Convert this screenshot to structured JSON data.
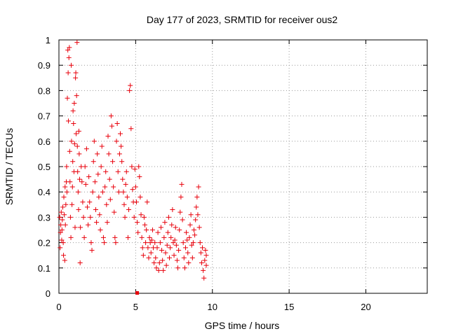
{
  "chart_data": {
    "type": "scatter",
    "title": "Day 177 of 2023, SRMTID for receiver ous2",
    "xlabel": "GPS time / hours",
    "ylabel": "SRMTID / TECUs",
    "xlim": [
      0,
      24
    ],
    "ylim": [
      0,
      1
    ],
    "xticks": [
      0,
      5,
      10,
      15,
      20
    ],
    "xtick_labels": [
      "0",
      "5",
      "10",
      "15",
      "20"
    ],
    "yticks": [
      0,
      0.1,
      0.2,
      0.3,
      0.4,
      0.5,
      0.6,
      0.7,
      0.8,
      0.9,
      1
    ],
    "ytick_labels": [
      "0",
      "0.1",
      "0.2",
      "0.3",
      "0.4",
      "0.5",
      "0.6",
      "0.7",
      "0.8",
      "0.9",
      "1"
    ],
    "grid": true,
    "marker": "+",
    "color": "#e8000b",
    "series": [
      {
        "name": "SRMTID",
        "x_range": [
          0,
          9.6
        ],
        "points": [
          [
            0.05,
            0.3
          ],
          [
            0.08,
            0.18
          ],
          [
            0.1,
            0.24
          ],
          [
            0.12,
            0.27
          ],
          [
            0.15,
            0.32
          ],
          [
            0.18,
            0.21
          ],
          [
            0.2,
            0.25
          ],
          [
            0.22,
            0.29
          ],
          [
            0.25,
            0.34
          ],
          [
            0.28,
            0.2
          ],
          [
            0.3,
            0.15
          ],
          [
            0.32,
            0.38
          ],
          [
            0.35,
            0.31
          ],
          [
            0.38,
            0.13
          ],
          [
            0.4,
            0.42
          ],
          [
            0.42,
            0.27
          ],
          [
            0.45,
            0.35
          ],
          [
            0.48,
            0.44
          ],
          [
            0.5,
            0.5
          ],
          [
            0.52,
            0.4
          ],
          [
            0.55,
            0.77
          ],
          [
            0.58,
            0.96
          ],
          [
            0.6,
            0.87
          ],
          [
            0.62,
            0.68
          ],
          [
            0.65,
            0.93
          ],
          [
            0.68,
            0.97
          ],
          [
            0.7,
            0.56
          ],
          [
            0.72,
            0.44
          ],
          [
            0.75,
            0.3
          ],
          [
            0.78,
            0.22
          ],
          [
            0.8,
            0.9
          ],
          [
            0.82,
            0.6
          ],
          [
            0.85,
            0.35
          ],
          [
            0.88,
            0.42
          ],
          [
            0.9,
            0.52
          ],
          [
            0.92,
            0.72
          ],
          [
            0.95,
            0.67
          ],
          [
            0.98,
            0.48
          ],
          [
            1.0,
            0.75
          ],
          [
            1.02,
            0.59
          ],
          [
            1.05,
            0.26
          ],
          [
            1.08,
            0.85
          ],
          [
            1.1,
            0.87
          ],
          [
            1.12,
            0.63
          ],
          [
            1.15,
            0.78
          ],
          [
            1.18,
            0.99
          ],
          [
            1.2,
            0.58
          ],
          [
            1.22,
            0.48
          ],
          [
            1.25,
            0.4
          ],
          [
            1.28,
            0.33
          ],
          [
            1.3,
            0.64
          ],
          [
            1.32,
            0.55
          ],
          [
            1.35,
            0.45
          ],
          [
            1.38,
            0.12
          ],
          [
            1.4,
            0.26
          ],
          [
            1.45,
            0.5
          ],
          [
            1.5,
            0.44
          ],
          [
            1.55,
            0.36
          ],
          [
            1.6,
            0.3
          ],
          [
            1.65,
            0.22
          ],
          [
            1.7,
            0.5
          ],
          [
            1.75,
            0.43
          ],
          [
            1.8,
            0.57
          ],
          [
            1.85,
            0.34
          ],
          [
            1.9,
            0.27
          ],
          [
            1.95,
            0.46
          ],
          [
            2.0,
            0.36
          ],
          [
            2.05,
            0.3
          ],
          [
            2.1,
            0.2
          ],
          [
            2.15,
            0.17
          ],
          [
            2.2,
            0.4
          ],
          [
            2.25,
            0.52
          ],
          [
            2.3,
            0.6
          ],
          [
            2.35,
            0.44
          ],
          [
            2.4,
            0.33
          ],
          [
            2.45,
            0.28
          ],
          [
            2.5,
            0.55
          ],
          [
            2.55,
            0.47
          ],
          [
            2.6,
            0.38
          ],
          [
            2.65,
            0.31
          ],
          [
            2.7,
            0.25
          ],
          [
            2.75,
            0.5
          ],
          [
            2.8,
            0.58
          ],
          [
            2.85,
            0.4
          ],
          [
            2.9,
            0.22
          ],
          [
            2.95,
            0.2
          ],
          [
            3.0,
            0.42
          ],
          [
            3.05,
            0.48
          ],
          [
            3.1,
            0.35
          ],
          [
            3.15,
            0.28
          ],
          [
            3.2,
            0.62
          ],
          [
            3.25,
            0.55
          ],
          [
            3.3,
            0.45
          ],
          [
            3.35,
            0.37
          ],
          [
            3.4,
            0.7
          ],
          [
            3.45,
            0.66
          ],
          [
            3.5,
            0.52
          ],
          [
            3.55,
            0.42
          ],
          [
            3.6,
            0.32
          ],
          [
            3.65,
            0.22
          ],
          [
            3.7,
            0.2
          ],
          [
            3.75,
            0.6
          ],
          [
            3.8,
            0.67
          ],
          [
            3.85,
            0.48
          ],
          [
            3.9,
            0.4
          ],
          [
            3.95,
            0.55
          ],
          [
            4.0,
            0.63
          ],
          [
            4.05,
            0.58
          ],
          [
            4.1,
            0.52
          ],
          [
            4.15,
            0.45
          ],
          [
            4.2,
            0.4
          ],
          [
            4.25,
            0.35
          ],
          [
            4.3,
            0.3
          ],
          [
            4.35,
            0.43
          ],
          [
            4.4,
            0.48
          ],
          [
            4.45,
            0.38
          ],
          [
            4.5,
            0.22
          ],
          [
            4.55,
            0.33
          ],
          [
            4.6,
            0.8
          ],
          [
            4.65,
            0.82
          ],
          [
            4.7,
            0.65
          ],
          [
            4.75,
            0.5
          ],
          [
            4.8,
            0.41
          ],
          [
            4.85,
            0.36
          ],
          [
            4.9,
            0.3
          ],
          [
            4.95,
            0.49
          ],
          [
            5.0,
            0.42
          ],
          [
            5.05,
            0.36
          ],
          [
            5.1,
            0.28
          ],
          [
            5.15,
            0.24
          ],
          [
            5.2,
            0.5
          ],
          [
            5.25,
            0.46
          ],
          [
            5.3,
            0.38
          ],
          [
            5.35,
            0.31
          ],
          [
            5.4,
            0.22
          ],
          [
            5.45,
            0.18
          ],
          [
            5.5,
            0.15
          ],
          [
            5.55,
            0.3
          ],
          [
            5.6,
            0.27
          ],
          [
            5.65,
            0.2
          ],
          [
            5.7,
            0.25
          ],
          [
            5.75,
            0.36
          ],
          [
            5.8,
            0.18
          ],
          [
            5.85,
            0.14
          ],
          [
            5.9,
            0.22
          ],
          [
            5.95,
            0.2
          ],
          [
            6.0,
            0.16
          ],
          [
            6.05,
            0.21
          ],
          [
            6.1,
            0.25
          ],
          [
            6.15,
            0.18
          ],
          [
            6.2,
            0.12
          ],
          [
            6.25,
            0.2
          ],
          [
            6.3,
            0.14
          ],
          [
            6.35,
            0.1
          ],
          [
            6.4,
            0.18
          ],
          [
            6.45,
            0.24
          ],
          [
            6.5,
            0.09
          ],
          [
            6.55,
            0.12
          ],
          [
            6.6,
            0.2
          ],
          [
            6.65,
            0.26
          ],
          [
            6.7,
            0.17
          ],
          [
            6.75,
            0.13
          ],
          [
            6.8,
            0.09
          ],
          [
            6.85,
            0.22
          ],
          [
            6.9,
            0.28
          ],
          [
            6.95,
            0.16
          ],
          [
            7.0,
            0.11
          ],
          [
            7.05,
            0.19
          ],
          [
            7.1,
            0.24
          ],
          [
            7.15,
            0.3
          ],
          [
            7.2,
            0.14
          ],
          [
            7.25,
            0.18
          ],
          [
            7.3,
            0.22
          ],
          [
            7.35,
            0.27
          ],
          [
            7.4,
            0.33
          ],
          [
            7.45,
            0.2
          ],
          [
            7.5,
            0.15
          ],
          [
            7.55,
            0.21
          ],
          [
            7.6,
            0.26
          ],
          [
            7.65,
            0.19
          ],
          [
            7.7,
            0.13
          ],
          [
            7.75,
            0.1
          ],
          [
            7.8,
            0.17
          ],
          [
            7.85,
            0.25
          ],
          [
            7.9,
            0.32
          ],
          [
            7.95,
            0.38
          ],
          [
            8.0,
            0.43
          ],
          [
            8.05,
            0.29
          ],
          [
            8.1,
            0.2
          ],
          [
            8.15,
            0.14
          ],
          [
            8.2,
            0.1
          ],
          [
            8.25,
            0.18
          ],
          [
            8.3,
            0.24
          ],
          [
            8.35,
            0.21
          ],
          [
            8.4,
            0.16
          ],
          [
            8.45,
            0.12
          ],
          [
            8.5,
            0.22
          ],
          [
            8.55,
            0.27
          ],
          [
            8.6,
            0.31
          ],
          [
            8.65,
            0.19
          ],
          [
            8.7,
            0.14
          ],
          [
            8.75,
            0.2
          ],
          [
            8.8,
            0.25
          ],
          [
            8.85,
            0.23
          ],
          [
            8.9,
            0.29
          ],
          [
            8.95,
            0.34
          ],
          [
            9.0,
            0.38
          ],
          [
            9.05,
            0.31
          ],
          [
            9.1,
            0.42
          ],
          [
            9.15,
            0.26
          ],
          [
            9.2,
            0.2
          ],
          [
            9.25,
            0.16
          ],
          [
            9.3,
            0.12
          ],
          [
            9.35,
            0.18
          ],
          [
            9.4,
            0.09
          ],
          [
            9.45,
            0.06
          ],
          [
            9.5,
            0.13
          ],
          [
            9.55,
            0.17
          ],
          [
            9.6,
            0.11
          ],
          [
            9.6,
            0.15
          ]
        ]
      }
    ],
    "marker_on_axis": {
      "x": 5.1,
      "y": 0.0
    }
  }
}
